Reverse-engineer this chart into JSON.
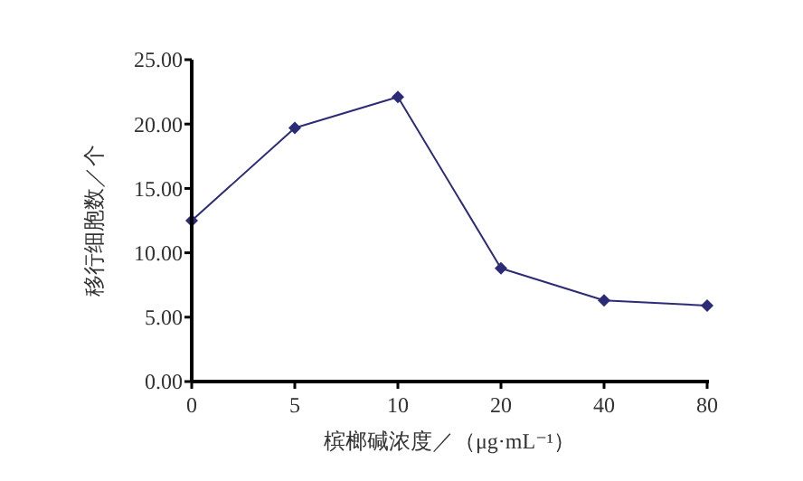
{
  "chart_data": {
    "type": "line",
    "categories": [
      "0",
      "5",
      "10",
      "20",
      "40",
      "80"
    ],
    "series": [
      {
        "color": "#2b2b78",
        "values": [
          12.5,
          19.7,
          22.1,
          8.8,
          6.3,
          5.9
        ]
      }
    ],
    "ylim": [
      0,
      25
    ],
    "yticks": [
      {
        "value": 0,
        "label": "0.00"
      },
      {
        "value": 5,
        "label": "5.00"
      },
      {
        "value": 10,
        "label": "10.00"
      },
      {
        "value": 15,
        "label": "15.00"
      },
      {
        "value": 20,
        "label": "20.00"
      },
      {
        "value": 25,
        "label": "25.00"
      }
    ],
    "xlabel": "槟榔碱浓度／（μg·mL⁻¹）",
    "ylabel": "移行细胞数／个",
    "marker": "diamond",
    "line_style": "solid"
  }
}
